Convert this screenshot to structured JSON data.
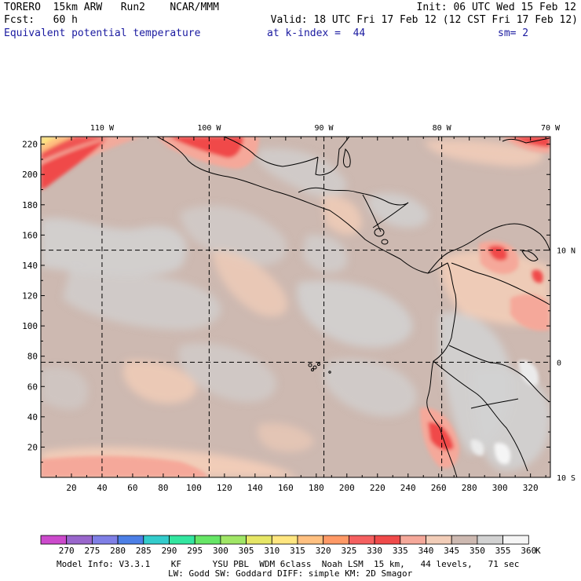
{
  "header": {
    "line1_left": "TORERO  15km ARW   Run2    NCAR/MMM",
    "line1_right": "Init: 06 UTC Wed 15 Feb 12",
    "line2_left": "Fcst:   60 h",
    "line2_right": "Valid: 18 UTC Fri 17 Feb 12 (12 CST Fri 17 Feb 12)",
    "field": "Equivalent potential temperature",
    "level": "at k-index =  44",
    "smoothing": "sm= 2"
  },
  "map": {
    "lon_labels": [
      "110 W",
      "100 W",
      "90 W",
      "80 W",
      "70 W"
    ],
    "lat_labels": [
      "10 N",
      "0",
      "10 S"
    ],
    "y_ticks": [
      "220",
      "200",
      "180",
      "160",
      "140",
      "120",
      "100",
      "80",
      "60",
      "40",
      "20"
    ],
    "x_ticks": [
      "20",
      "40",
      "60",
      "80",
      "100",
      "120",
      "140",
      "160",
      "180",
      "200",
      "220",
      "240",
      "260",
      "280",
      "300",
      "320"
    ],
    "grid_x": [
      40,
      110,
      185,
      262
    ],
    "grid_y": [
      150,
      76
    ],
    "x_range": [
      0,
      333
    ],
    "y_range": [
      0,
      225
    ],
    "background_color": "#cdb9b1"
  },
  "colorbar": {
    "unit": "K",
    "labels": [
      "270",
      "275",
      "280",
      "285",
      "290",
      "295",
      "300",
      "305",
      "310",
      "315",
      "320",
      "325",
      "330",
      "335",
      "340",
      "345",
      "350",
      "355",
      "360"
    ],
    "colors": [
      "#cc4acc",
      "#9966cc",
      "#7f7fe6",
      "#4c7fe6",
      "#33cccc",
      "#33e6a0",
      "#66e666",
      "#a0e666",
      "#e6e666",
      "#ffe680",
      "#ffc080",
      "#ff9966",
      "#f56060",
      "#f04a4a",
      "#f5a89a",
      "#f2cdb8",
      "#cdb9b1",
      "#d2d2d2",
      "#f5f5f5"
    ]
  },
  "footer": {
    "line1": "Model Info: V3.3.1    KF      YSU PBL  WDM 6class  Noah LSM  15 km,   44 levels,   71 sec",
    "line2": "LW: Godd SW: Goddard DIFF: simple KM: 2D Smagor"
  }
}
